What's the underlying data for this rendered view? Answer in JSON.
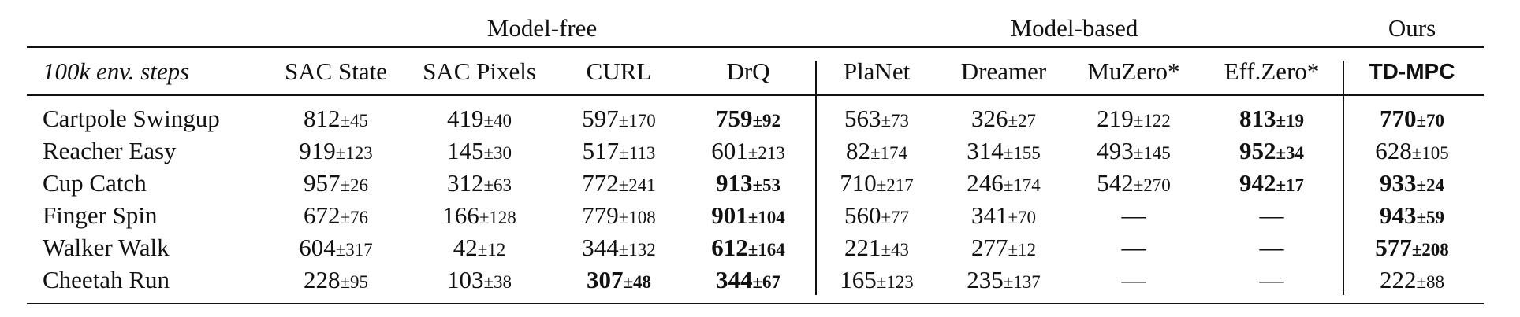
{
  "groups": [
    {
      "label": "Model-free",
      "span": 4
    },
    {
      "label": "Model-based",
      "span": 4
    },
    {
      "label": "Ours",
      "span": 1
    }
  ],
  "header": {
    "corner": "100k env. steps",
    "columns": [
      "SAC State",
      "SAC Pixels",
      "CURL",
      "DrQ",
      "PlaNet",
      "Dreamer",
      "MuZero*",
      "Eff.Zero*",
      "TD-MPC"
    ],
    "bold_columns": [
      8
    ]
  },
  "rows": [
    {
      "label": "Cartpole Swingup",
      "cells": [
        {
          "mean": "812",
          "std": "±45"
        },
        {
          "mean": "419",
          "std": "±40"
        },
        {
          "mean": "597",
          "std": "±170"
        },
        {
          "mean": "759",
          "std": "±92",
          "bold": true
        },
        {
          "mean": "563",
          "std": "±73"
        },
        {
          "mean": "326",
          "std": "±27"
        },
        {
          "mean": "219",
          "std": "±122"
        },
        {
          "mean": "813",
          "std": "±19",
          "bold": true
        },
        {
          "mean": "770",
          "std": "±70",
          "bold": true
        }
      ]
    },
    {
      "label": "Reacher Easy",
      "cells": [
        {
          "mean": "919",
          "std": "±123"
        },
        {
          "mean": "145",
          "std": "±30"
        },
        {
          "mean": "517",
          "std": "±113"
        },
        {
          "mean": "601",
          "std": "±213"
        },
        {
          "mean": "82",
          "std": "±174"
        },
        {
          "mean": "314",
          "std": "±155"
        },
        {
          "mean": "493",
          "std": "±145"
        },
        {
          "mean": "952",
          "std": "±34",
          "bold": true
        },
        {
          "mean": "628",
          "std": "±105"
        }
      ]
    },
    {
      "label": "Cup Catch",
      "cells": [
        {
          "mean": "957",
          "std": "±26"
        },
        {
          "mean": "312",
          "std": "±63"
        },
        {
          "mean": "772",
          "std": "±241"
        },
        {
          "mean": "913",
          "std": "±53",
          "bold": true
        },
        {
          "mean": "710",
          "std": "±217"
        },
        {
          "mean": "246",
          "std": "±174"
        },
        {
          "mean": "542",
          "std": "±270"
        },
        {
          "mean": "942",
          "std": "±17",
          "bold": true
        },
        {
          "mean": "933",
          "std": "±24",
          "bold": true
        }
      ]
    },
    {
      "label": "Finger Spin",
      "cells": [
        {
          "mean": "672",
          "std": "±76"
        },
        {
          "mean": "166",
          "std": "±128"
        },
        {
          "mean": "779",
          "std": "±108"
        },
        {
          "mean": "901",
          "std": "±104",
          "bold": true
        },
        {
          "mean": "560",
          "std": "±77"
        },
        {
          "mean": "341",
          "std": "±70"
        },
        {
          "mean": "—"
        },
        {
          "mean": "—"
        },
        {
          "mean": "943",
          "std": "±59",
          "bold": true
        }
      ]
    },
    {
      "label": "Walker Walk",
      "cells": [
        {
          "mean": "604",
          "std": "±317"
        },
        {
          "mean": "42",
          "std": "±12"
        },
        {
          "mean": "344",
          "std": "±132"
        },
        {
          "mean": "612",
          "std": "±164",
          "bold": true
        },
        {
          "mean": "221",
          "std": "±43"
        },
        {
          "mean": "277",
          "std": "±12"
        },
        {
          "mean": "—"
        },
        {
          "mean": "—"
        },
        {
          "mean": "577",
          "std": "±208",
          "bold": true
        }
      ]
    },
    {
      "label": "Cheetah Run",
      "cells": [
        {
          "mean": "228",
          "std": "±95"
        },
        {
          "mean": "103",
          "std": "±38"
        },
        {
          "mean": "307",
          "std": "±48",
          "bold": true
        },
        {
          "mean": "344",
          "std": "±67",
          "bold": true
        },
        {
          "mean": "165",
          "std": "±123"
        },
        {
          "mean": "235",
          "std": "±137"
        },
        {
          "mean": "—"
        },
        {
          "mean": "—"
        },
        {
          "mean": "222",
          "std": "±88"
        }
      ]
    }
  ]
}
